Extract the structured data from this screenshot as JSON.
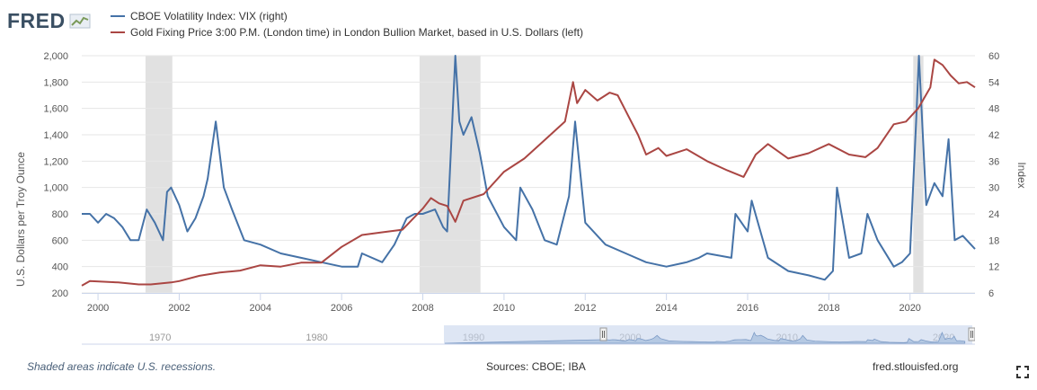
{
  "header": {
    "logo_text": "FRED",
    "logo_icon": "fred-chart-icon"
  },
  "legend": [
    {
      "label": "CBOE Volatility Index: VIX (right)",
      "color": "#4572a7"
    },
    {
      "label": "Gold Fixing Price 3:00 P.M. (London time) in London Bullion Market, based in U.S. Dollars (left)",
      "color": "#aa4643"
    }
  ],
  "footer": {
    "note": "Shaded areas indicate U.S. recessions.",
    "sources": "Sources: CBOE; IBA",
    "site": "fred.stlouisfed.org",
    "fullscreen_icon": "fullscreen-icon"
  },
  "navigator": {
    "tick_labels": [
      "1970",
      "1980",
      "1990",
      "2000",
      "2010",
      "2020"
    ],
    "range": [
      1999.6,
      2021.6
    ]
  },
  "chart_data": {
    "type": "line",
    "x_range": [
      1999.6,
      2021.6
    ],
    "x_ticks": [
      2000,
      2002,
      2004,
      2006,
      2008,
      2010,
      2012,
      2014,
      2016,
      2018,
      2020
    ],
    "left_axis": {
      "label": "U.S. Dollars per Troy Ounce",
      "range": [
        200,
        2000
      ],
      "ticks": [
        200,
        400,
        600,
        800,
        1000,
        1200,
        1400,
        1600,
        1800,
        2000
      ]
    },
    "right_axis": {
      "label": "Index",
      "range": [
        6,
        60
      ],
      "ticks": [
        6,
        12,
        18,
        24,
        30,
        36,
        42,
        48,
        54,
        60
      ]
    },
    "grid": true,
    "recessions": [
      [
        2001.17,
        2001.83
      ],
      [
        2007.92,
        2009.42
      ],
      [
        2020.08,
        2020.33
      ]
    ],
    "series": [
      {
        "name": "CBOE Volatility Index: VIX (right)",
        "axis": "right",
        "color": "#4572a7",
        "x": [
          1999.6,
          1999.8,
          2000.0,
          2000.2,
          2000.4,
          2000.6,
          2000.8,
          2001.0,
          2001.2,
          2001.4,
          2001.6,
          2001.7,
          2001.8,
          2002.0,
          2002.2,
          2002.4,
          2002.6,
          2002.7,
          2002.9,
          2003.1,
          2003.3,
          2003.6,
          2004.0,
          2004.5,
          2005.0,
          2005.5,
          2006.0,
          2006.4,
          2006.5,
          2007.0,
          2007.3,
          2007.6,
          2007.8,
          2008.0,
          2008.3,
          2008.5,
          2008.6,
          2008.8,
          2008.9,
          2009.0,
          2009.2,
          2009.4,
          2009.6,
          2010.0,
          2010.3,
          2010.4,
          2010.7,
          2011.0,
          2011.3,
          2011.6,
          2011.75,
          2012.0,
          2012.5,
          2013.0,
          2013.5,
          2014.0,
          2014.5,
          2014.8,
          2015.0,
          2015.6,
          2015.7,
          2016.0,
          2016.1,
          2016.5,
          2017.0,
          2017.5,
          2017.9,
          2018.1,
          2018.2,
          2018.5,
          2018.8,
          2018.95,
          2019.2,
          2019.6,
          2019.8,
          2020.0,
          2020.15,
          2020.22,
          2020.4,
          2020.6,
          2020.8,
          2020.95,
          2021.1,
          2021.3,
          2021.6
        ],
        "values": [
          24,
          24,
          22,
          24,
          23,
          21,
          18,
          18,
          25,
          22,
          18,
          29,
          30,
          26,
          20,
          23,
          28,
          32,
          45,
          30,
          25,
          18,
          17,
          15,
          14,
          13,
          12,
          12,
          15,
          13,
          17,
          23,
          24,
          24,
          25,
          21,
          20,
          60,
          45,
          42,
          46,
          38,
          28,
          21,
          18,
          30,
          25,
          18,
          17,
          28,
          45,
          22,
          17,
          15,
          13,
          12,
          13,
          14,
          15,
          14,
          24,
          20,
          27,
          14,
          11,
          10,
          9,
          11,
          30,
          14,
          15,
          24,
          18,
          12,
          13,
          15,
          45,
          60,
          26,
          31,
          28,
          41,
          18,
          19,
          16
        ]
      },
      {
        "name": "Gold Fixing Price 3:00 P.M. (London time) in London Bullion Market, based in U.S. Dollars (left)",
        "axis": "left",
        "color": "#aa4643",
        "x": [
          1999.6,
          1999.8,
          2000.5,
          2001.0,
          2001.3,
          2001.8,
          2002.0,
          2002.5,
          2003.0,
          2003.5,
          2004.0,
          2004.5,
          2005.0,
          2005.5,
          2006.0,
          2006.5,
          2007.0,
          2007.5,
          2008.0,
          2008.2,
          2008.4,
          2008.6,
          2008.8,
          2009.0,
          2009.5,
          2010.0,
          2010.5,
          2011.0,
          2011.5,
          2011.7,
          2011.8,
          2012.0,
          2012.3,
          2012.6,
          2012.8,
          2013.0,
          2013.3,
          2013.5,
          2013.8,
          2014.0,
          2014.5,
          2015.0,
          2015.5,
          2015.9,
          2016.2,
          2016.5,
          2017.0,
          2017.5,
          2018.0,
          2018.5,
          2018.9,
          2019.2,
          2019.6,
          2019.9,
          2020.2,
          2020.5,
          2020.6,
          2020.8,
          2021.0,
          2021.2,
          2021.4,
          2021.6
        ],
        "values": [
          255,
          290,
          280,
          265,
          265,
          280,
          290,
          330,
          355,
          370,
          410,
          400,
          430,
          430,
          550,
          640,
          660,
          680,
          840,
          920,
          880,
          860,
          740,
          900,
          950,
          1120,
          1220,
          1360,
          1500,
          1800,
          1640,
          1740,
          1660,
          1720,
          1700,
          1580,
          1400,
          1250,
          1300,
          1240,
          1290,
          1200,
          1130,
          1080,
          1250,
          1330,
          1220,
          1260,
          1330,
          1250,
          1230,
          1300,
          1480,
          1500,
          1600,
          1760,
          1970,
          1930,
          1850,
          1790,
          1800,
          1760
        ]
      }
    ]
  }
}
